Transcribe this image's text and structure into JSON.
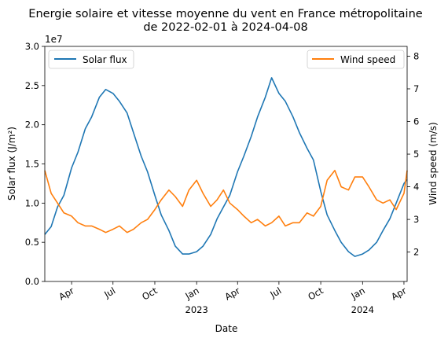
{
  "chart_data": {
    "type": "line",
    "title": "Energie solaire et vitesse moyenne du vent en France métropolitaine",
    "subtitle": "de 2022-02-01 à 2024-04-08",
    "xlabel": "Date",
    "x_range": [
      "2022-02-01",
      "2024-04-08"
    ],
    "x_ticks": [
      {
        "date": "2022-04-01",
        "label": "Apr",
        "label2": ""
      },
      {
        "date": "2022-07-01",
        "label": "Jul",
        "label2": ""
      },
      {
        "date": "2022-10-01",
        "label": "Oct",
        "label2": ""
      },
      {
        "date": "2023-01-01",
        "label": "Jan",
        "label2": "2023"
      },
      {
        "date": "2023-04-01",
        "label": "Apr",
        "label2": ""
      },
      {
        "date": "2023-07-01",
        "label": "Jul",
        "label2": ""
      },
      {
        "date": "2023-10-01",
        "label": "Oct",
        "label2": ""
      },
      {
        "date": "2024-01-01",
        "label": "Jan",
        "label2": "2024"
      },
      {
        "date": "2024-04-01",
        "label": "Apr",
        "label2": ""
      }
    ],
    "y_left": {
      "label": "Solar flux (J/m²)",
      "offset_text": "1e7",
      "ylim": [
        0,
        30000000
      ],
      "ticks": [
        0,
        5000000,
        10000000,
        15000000,
        20000000,
        25000000,
        30000000
      ],
      "tick_labels": [
        "0.0",
        "0.5",
        "1.0",
        "1.5",
        "2.0",
        "2.5",
        "3.0"
      ],
      "color": "#1f77b4"
    },
    "y_right": {
      "label": "Wind speed (m/s)",
      "ylim": [
        1.1,
        8.3
      ],
      "ticks": [
        2,
        3,
        4,
        5,
        6,
        7,
        8
      ],
      "tick_labels": [
        "2",
        "3",
        "4",
        "5",
        "6",
        "7",
        "8"
      ],
      "color": "#ff7f0e"
    },
    "series": [
      {
        "name": "Solar flux",
        "axis": "left",
        "color": "#1f77b4",
        "x": [
          "2022-02-01",
          "2022-02-15",
          "2022-03-01",
          "2022-03-15",
          "2022-04-01",
          "2022-04-15",
          "2022-05-01",
          "2022-05-15",
          "2022-06-01",
          "2022-06-15",
          "2022-07-01",
          "2022-07-15",
          "2022-08-01",
          "2022-08-15",
          "2022-09-01",
          "2022-09-15",
          "2022-10-01",
          "2022-10-15",
          "2022-11-01",
          "2022-11-15",
          "2022-12-01",
          "2022-12-15",
          "2023-01-01",
          "2023-01-15",
          "2023-02-01",
          "2023-02-15",
          "2023-03-01",
          "2023-03-15",
          "2023-04-01",
          "2023-04-15",
          "2023-05-01",
          "2023-05-15",
          "2023-06-01",
          "2023-06-15",
          "2023-07-01",
          "2023-07-15",
          "2023-08-01",
          "2023-08-15",
          "2023-09-01",
          "2023-09-15",
          "2023-10-01",
          "2023-10-15",
          "2023-11-01",
          "2023-11-15",
          "2023-12-01",
          "2023-12-15",
          "2024-01-01",
          "2024-01-15",
          "2024-02-01",
          "2024-02-15",
          "2024-03-01",
          "2024-03-15",
          "2024-04-01",
          "2024-04-08"
        ],
        "values": [
          6000000,
          7000000,
          9500000,
          11000000,
          14500000,
          16500000,
          19500000,
          21000000,
          23500000,
          24500000,
          24000000,
          23000000,
          21500000,
          19000000,
          16000000,
          14000000,
          11000000,
          8500000,
          6500000,
          4500000,
          3500000,
          3500000,
          3800000,
          4500000,
          6000000,
          8000000,
          9500000,
          11000000,
          14000000,
          16000000,
          18500000,
          21000000,
          23500000,
          26000000,
          24000000,
          23000000,
          21000000,
          19000000,
          17000000,
          15500000,
          11500000,
          8500000,
          6500000,
          5000000,
          3800000,
          3200000,
          3500000,
          4000000,
          5000000,
          6500000,
          8000000,
          10000000,
          12500000,
          13000000
        ]
      },
      {
        "name": "Wind speed",
        "axis": "right",
        "color": "#ff7f0e",
        "x": [
          "2022-02-01",
          "2022-02-15",
          "2022-03-01",
          "2022-03-15",
          "2022-04-01",
          "2022-04-15",
          "2022-05-01",
          "2022-05-15",
          "2022-06-01",
          "2022-06-15",
          "2022-07-01",
          "2022-07-15",
          "2022-08-01",
          "2022-08-15",
          "2022-09-01",
          "2022-09-15",
          "2022-10-01",
          "2022-10-15",
          "2022-11-01",
          "2022-11-15",
          "2022-12-01",
          "2022-12-15",
          "2023-01-01",
          "2023-01-15",
          "2023-02-01",
          "2023-02-15",
          "2023-03-01",
          "2023-03-15",
          "2023-04-01",
          "2023-04-15",
          "2023-05-01",
          "2023-05-15",
          "2023-06-01",
          "2023-06-15",
          "2023-07-01",
          "2023-07-15",
          "2023-08-01",
          "2023-08-15",
          "2023-09-01",
          "2023-09-15",
          "2023-10-01",
          "2023-10-15",
          "2023-11-01",
          "2023-11-15",
          "2023-12-01",
          "2023-12-15",
          "2024-01-01",
          "2024-01-15",
          "2024-02-01",
          "2024-02-15",
          "2024-03-01",
          "2024-03-15",
          "2024-04-01",
          "2024-04-08"
        ],
        "values": [
          4.5,
          3.8,
          3.5,
          3.2,
          3.1,
          2.9,
          2.8,
          2.8,
          2.7,
          2.6,
          2.7,
          2.8,
          2.6,
          2.7,
          2.9,
          3.0,
          3.3,
          3.6,
          3.9,
          3.7,
          3.4,
          3.9,
          4.2,
          3.8,
          3.4,
          3.6,
          3.9,
          3.5,
          3.3,
          3.1,
          2.9,
          3.0,
          2.8,
          2.9,
          3.1,
          2.8,
          2.9,
          2.9,
          3.2,
          3.1,
          3.4,
          4.2,
          4.5,
          4.0,
          3.9,
          4.3,
          4.3,
          4.0,
          3.6,
          3.5,
          3.6,
          3.3,
          3.8,
          4.5
        ]
      }
    ],
    "legend": [
      {
        "name": "Solar flux",
        "placement": "top-left",
        "color": "#1f77b4"
      },
      {
        "name": "Wind speed",
        "placement": "top-right",
        "color": "#ff7f0e"
      }
    ],
    "grid": false
  }
}
